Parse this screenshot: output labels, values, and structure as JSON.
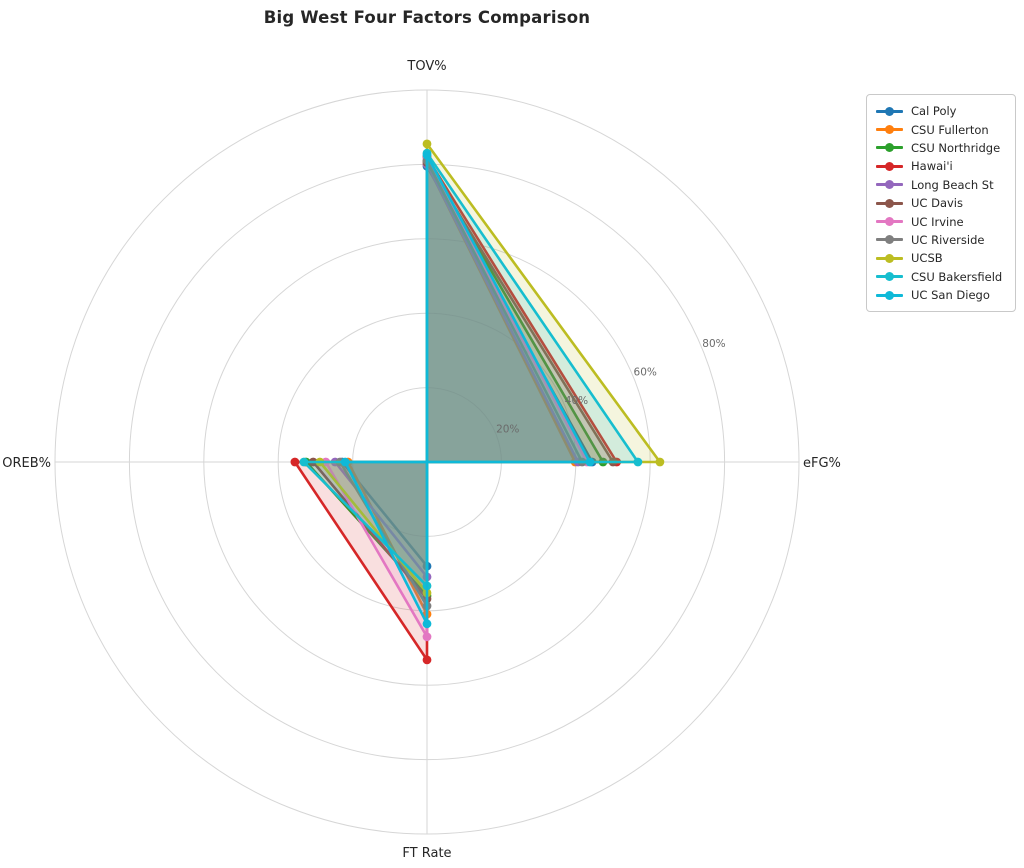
{
  "title": "Big West Four Factors Comparison",
  "chart_data": {
    "type": "radar",
    "axes": [
      "TOV%",
      "eFG%",
      "OREB%",
      "FT Rate"
    ],
    "axis_angles_deg": [
      90,
      0,
      180,
      270
    ],
    "radial_ticks": [
      "20%",
      "40%",
      "60%",
      "80%"
    ],
    "radial_tick_values": [
      20,
      40,
      60,
      80
    ],
    "rmax": 100,
    "grid": true,
    "grid_color": "#d6d6d6",
    "tick_label_color": "#6b6b6b",
    "axis_label_color": "#262626",
    "fill_alpha": 0.15,
    "legend_position": "upper right",
    "series": [
      {
        "name": "Cal Poly",
        "color": "#1f77b4",
        "values": [
          79.5,
          44.4,
          22.8,
          28.0
        ]
      },
      {
        "name": "CSU Fullerton",
        "color": "#ff7f0e",
        "values": [
          80.0,
          39.8,
          21.2,
          40.9
        ]
      },
      {
        "name": "CSU Northridge",
        "color": "#2ca02c",
        "values": [
          81.0,
          47.3,
          32.5,
          36.0
        ]
      },
      {
        "name": "Hawai'i",
        "color": "#d62728",
        "values": [
          82.0,
          51.0,
          35.5,
          53.2
        ]
      },
      {
        "name": "Long Beach St",
        "color": "#9467bd",
        "values": [
          80.0,
          40.6,
          24.7,
          30.9
        ]
      },
      {
        "name": "UC Davis",
        "color": "#8c564b",
        "values": [
          80.5,
          50.0,
          30.6,
          36.8
        ]
      },
      {
        "name": "UC Irvine",
        "color": "#e377c2",
        "values": [
          81.5,
          43.0,
          27.2,
          47.0
        ]
      },
      {
        "name": "UC Riverside",
        "color": "#7f7f7f",
        "values": [
          81.0,
          41.7,
          23.4,
          38.7
        ]
      },
      {
        "name": "UCSB",
        "color": "#bcbd22",
        "values": [
          85.5,
          62.6,
          28.8,
          35.2
        ]
      },
      {
        "name": "CSU Bakersfield",
        "color": "#17becf",
        "values": [
          83.0,
          56.7,
          33.1,
          33.3
        ]
      },
      {
        "name": "UC San Diego",
        "color": "#0fb9d8",
        "values": [
          82.5,
          43.8,
          22.0,
          43.5
        ]
      }
    ]
  }
}
